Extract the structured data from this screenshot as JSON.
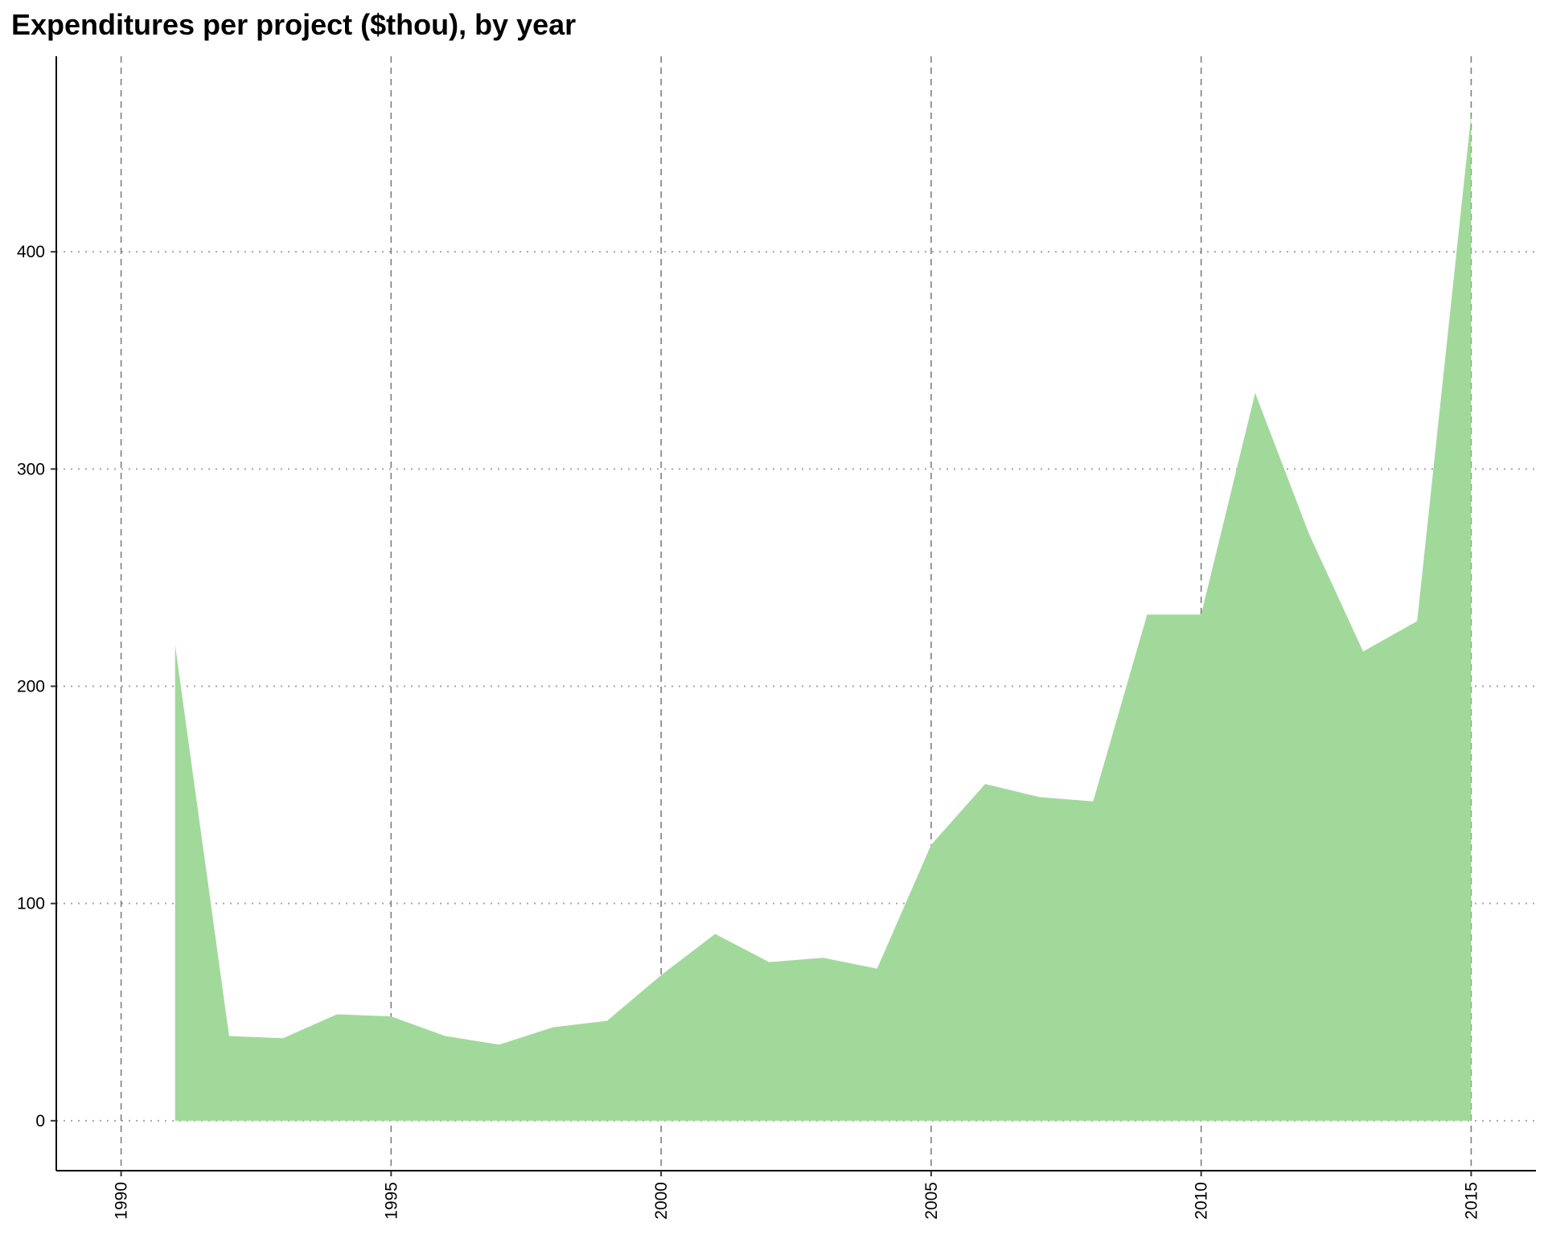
{
  "chart_data": {
    "type": "area",
    "title": "Expenditures per project ($thou), by year",
    "xlabel": "",
    "ylabel": "",
    "x": [
      1991,
      1992,
      1993,
      1994,
      1995,
      1996,
      1997,
      1998,
      1999,
      2000,
      2001,
      2002,
      2003,
      2004,
      2005,
      2006,
      2007,
      2008,
      2009,
      2010,
      2011,
      2012,
      2013,
      2014,
      2015
    ],
    "values": [
      219,
      39,
      38,
      49,
      48,
      39,
      35,
      43,
      46,
      67,
      86,
      73,
      75,
      70,
      127,
      155,
      149,
      147,
      233,
      233,
      335,
      270,
      216,
      230,
      463
    ],
    "xlim": [
      1988.8,
      2016.2
    ],
    "ylim": [
      -23,
      490
    ],
    "x_ticks": [
      "1990",
      "1995",
      "2000",
      "2005",
      "2010",
      "2015"
    ],
    "y_ticks": [
      "0",
      "100",
      "200",
      "300",
      "400"
    ],
    "grid": {
      "vertical": "dashed",
      "horizontal": "dotted"
    },
    "fill_color": "#a1d99b",
    "grid_color": "#7f7f7f"
  }
}
